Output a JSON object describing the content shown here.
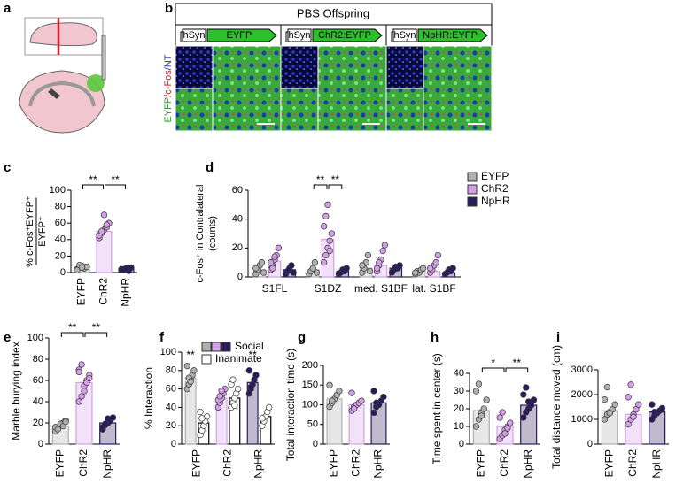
{
  "figure": {
    "panel_letters": [
      "a",
      "b",
      "c",
      "d",
      "e",
      "f",
      "g",
      "h",
      "i"
    ],
    "panel_b": {
      "title": "PBS Offspring",
      "constructs": [
        {
          "promoter": "hSyn",
          "gene": "EYFP"
        },
        {
          "promoter": "hSyn",
          "gene": "ChR2:EYFP"
        },
        {
          "promoter": "hSyn",
          "gene": "NpHR:EYFP"
        }
      ],
      "side_label": [
        "EYFP",
        "/c-Fos",
        "/NT"
      ],
      "side_label_colors": [
        "#2e9e2e",
        "#d0202a",
        "#1f2fa0"
      ]
    }
  },
  "chart_data": [
    {
      "type": "bar",
      "ylabel": [
        "% c-Fos⁺EYFP⁺",
        "EYFP⁺"
      ],
      "categories": [
        "EYFP",
        "ChR2",
        "NpHR"
      ],
      "colors": [
        "#b0b0b0",
        "#d59ee8",
        "#2a1b5e"
      ],
      "series": [
        {
          "values": [
            6,
            50,
            4
          ],
          "points": [
            [
              4,
              6,
              8,
              5,
              7,
              3,
              9,
              6
            ],
            [
              42,
              48,
              52,
              55,
              60,
              45,
              50,
              70,
              58
            ],
            [
              3,
              4,
              5,
              2,
              6,
              4,
              3,
              5
            ]
          ]
        }
      ],
      "ylim": [
        0,
        100
      ],
      "yticks": [
        0,
        20,
        40,
        60,
        80,
        100
      ],
      "annotations": [
        {
          "label": "**",
          "between": [
            "EYFP",
            "ChR2"
          ]
        },
        {
          "label": "**",
          "between": [
            "ChR2",
            "NpHR"
          ]
        }
      ]
    },
    {
      "type": "bar",
      "ylabel": [
        "c-Fos⁺ in Contralateral",
        "(counts)"
      ],
      "categories": [
        "S1FL",
        "S1DZ",
        "med. S1BF",
        "lat. S1BF"
      ],
      "series": [
        {
          "name": "EYFP",
          "color": "#b0b0b0",
          "values": [
            5,
            5,
            6,
            4
          ],
          "points": [
            [
              2,
              5,
              8,
              10,
              3,
              6
            ],
            [
              2,
              4,
              6,
              10,
              3
            ],
            [
              3,
              6,
              10,
              15,
              4,
              8
            ],
            [
              2,
              4,
              3,
              5,
              6,
              3
            ]
          ]
        },
        {
          "name": "ChR2",
          "color": "#d59ee8",
          "values": [
            11,
            26,
            8,
            4
          ],
          "points": [
            [
              5,
              8,
              12,
              15,
              20,
              10,
              6,
              14
            ],
            [
              10,
              15,
              20,
              25,
              30,
              35,
              42,
              50,
              18
            ],
            [
              4,
              8,
              12,
              18,
              22,
              6,
              10
            ],
            [
              3,
              5,
              8,
              10,
              15,
              6
            ]
          ]
        },
        {
          "name": "NpHR",
          "color": "#2a1b5e",
          "values": [
            5,
            4,
            6,
            3
          ],
          "points": [
            [
              2,
              4,
              6,
              8,
              3
            ],
            [
              2,
              3,
              5,
              4,
              6
            ],
            [
              3,
              5,
              7,
              6,
              8
            ],
            [
              2,
              3,
              5,
              4,
              6
            ]
          ]
        }
      ],
      "ylim": [
        0,
        60
      ],
      "yticks": [
        0,
        20,
        40,
        60
      ],
      "annotations": [
        {
          "label": "**",
          "category": "S1DZ",
          "between": [
            "EYFP",
            "ChR2"
          ]
        },
        {
          "label": "**",
          "category": "S1DZ",
          "between": [
            "ChR2",
            "NpHR"
          ]
        }
      ]
    },
    {
      "type": "bar",
      "ylabel": "Marble burying index",
      "categories": [
        "EYFP",
        "ChR2",
        "NpHR"
      ],
      "colors": [
        "#b0b0b0",
        "#d59ee8",
        "#2a1b5e"
      ],
      "series": [
        {
          "values": [
            17,
            58,
            20
          ],
          "points": [
            [
              12,
              15,
              18,
              20,
              22,
              16,
              14,
              19,
              17,
              21
            ],
            [
              40,
              45,
              55,
              60,
              65,
              70,
              75,
              50,
              58,
              62,
              68
            ],
            [
              14,
              18,
              20,
              22,
              25,
              16,
              19,
              24
            ]
          ]
        }
      ],
      "ylim": [
        0,
        100
      ],
      "yticks": [
        0,
        20,
        40,
        60,
        80,
        100
      ],
      "annotations": [
        {
          "label": "**",
          "between": [
            "EYFP",
            "ChR2"
          ]
        },
        {
          "label": "**",
          "between": [
            "ChR2",
            "NpHR"
          ]
        }
      ]
    },
    {
      "type": "bar",
      "ylabel": "% Interaction",
      "categories": [
        "EYFP",
        "ChR2",
        "NpHR"
      ],
      "series": [
        {
          "name": "Social",
          "colors": [
            "#b0b0b0",
            "#d59ee8",
            "#2a1b5e"
          ],
          "values": [
            72,
            50,
            67
          ],
          "points": [
            [
              60,
              65,
              70,
              75,
              80,
              85,
              72,
              68
            ],
            [
              40,
              45,
              50,
              55,
              60,
              48,
              52,
              58
            ],
            [
              55,
              60,
              65,
              70,
              75,
              80,
              62
            ]
          ]
        },
        {
          "name": "Inanimate",
          "color": "#ffffff",
          "values": [
            23,
            50,
            30
          ],
          "points": [
            [
              10,
              15,
              20,
              25,
              30,
              35,
              28
            ],
            [
              40,
              45,
              50,
              55,
              60,
              65,
              70,
              42
            ],
            [
              20,
              25,
              30,
              35,
              40,
              28
            ]
          ]
        }
      ],
      "ylim": [
        0,
        100
      ],
      "yticks": [
        0,
        20,
        40,
        60,
        80,
        100
      ],
      "annotations": [
        {
          "label": "**",
          "category": "EYFP",
          "between": [
            "Social"
          ]
        },
        {
          "label": "**",
          "category": "NpHR",
          "between": [
            "Social"
          ]
        }
      ]
    },
    {
      "type": "bar",
      "ylabel": "Total interaction time (s)",
      "categories": [
        "EYFP",
        "ChR2",
        "NpHR"
      ],
      "colors": [
        "#b0b0b0",
        "#d59ee8",
        "#2a1b5e"
      ],
      "series": [
        {
          "values": [
            115,
            100,
            105
          ],
          "points": [
            [
              95,
              105,
              115,
              125,
              135,
              150,
              110
            ],
            [
              85,
              95,
              100,
              105,
              110,
              130,
              90
            ],
            [
              80,
              95,
              100,
              110,
              120,
              135,
              105
            ]
          ]
        }
      ],
      "ylim": [
        0,
        200
      ],
      "yticks": [
        0,
        50,
        100,
        150,
        200
      ],
      "annotations": []
    },
    {
      "type": "bar",
      "ylabel": "Time spent in center (s)",
      "categories": [
        "EYFP",
        "ChR2",
        "NpHR"
      ],
      "colors": [
        "#b0b0b0",
        "#d59ee8",
        "#2a1b5e"
      ],
      "series": [
        {
          "values": [
            19,
            10,
            22
          ],
          "points": [
            [
              10,
              14,
              18,
              20,
              25,
              30,
              34,
              16
            ],
            [
              3,
              5,
              8,
              10,
              12,
              15,
              18,
              6,
              9
            ],
            [
              15,
              18,
              20,
              22,
              25,
              28,
              32,
              24
            ]
          ]
        }
      ],
      "ylim": [
        0,
        40
      ],
      "yticks": [
        0,
        10,
        20,
        30,
        40
      ],
      "annotations": [
        {
          "label": "*",
          "between": [
            "EYFP",
            "ChR2"
          ]
        },
        {
          "label": "**",
          "between": [
            "ChR2",
            "NpHR"
          ]
        }
      ]
    },
    {
      "type": "bar",
      "ylabel": "Total distance moved (cm)",
      "categories": [
        "EYFP",
        "ChR2",
        "NpHR"
      ],
      "colors": [
        "#b0b0b0",
        "#d59ee8",
        "#2a1b5e"
      ],
      "series": [
        {
          "values": [
            1350,
            1200,
            1300
          ],
          "points": [
            [
              1000,
              1200,
              1300,
              1400,
              1600,
              1800,
              2300,
              1250
            ],
            [
              800,
              1000,
              1200,
              1400,
              1600,
              1900,
              2400,
              1100
            ],
            [
              1000,
              1150,
              1250,
              1350,
              1450,
              1600,
              1300
            ]
          ]
        }
      ],
      "ylim": [
        0,
        3000
      ],
      "yticks": [
        0,
        1000,
        2000,
        3000
      ],
      "annotations": []
    }
  ]
}
